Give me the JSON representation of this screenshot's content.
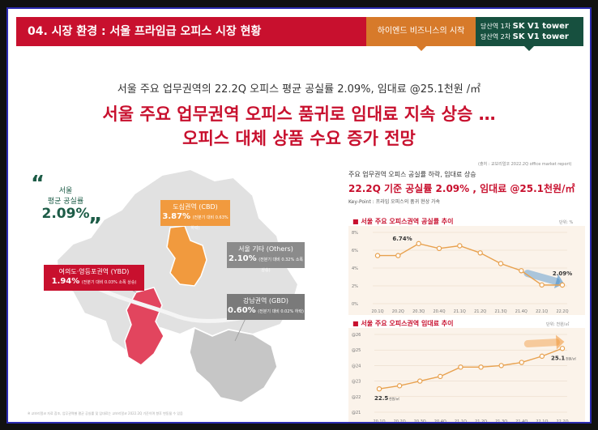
{
  "header": {
    "section_title": "04. 시장 환경 : 서울 프라임급 오피스 시장 현황",
    "tagline": "하이엔드 비즈니스의 시작",
    "brand_line1_prefix": "당산역 1차",
    "brand_line1_name": "SK V1 tower",
    "brand_line2_prefix": "당산역 2차",
    "brand_line2_name": "SK V1 tower"
  },
  "colors": {
    "brand_red": "#c8102e",
    "accent_orange": "#d77a2a",
    "brand_green": "#17503f",
    "frame_border": "#2b2bb0"
  },
  "subtitle": "서울 주요 업무권역의 22.2Q 오피스 평균 공실률 2.09%, 임대료 @25.1천원 /㎡",
  "headline": {
    "line1": "서울 주요 업무권역 오피스 품귀로 임대료 지속 상승 …",
    "line2": "오피스 대체 상품 수요 증가 전망"
  },
  "source": "(출처 : 교보리얼코 2022.2Q office market report)",
  "quote": {
    "label_line1": "서울",
    "label_line2": "평균 공실률",
    "value": "2.09%"
  },
  "map": {
    "cbd": {
      "name": "도심권역 (CBD)",
      "value": "3.87%",
      "note": "(전분기 대비 0.63% 하락)"
    },
    "ybd": {
      "name": "여의도·영등포권역 (YBD)",
      "value": "1.94%",
      "note": "(전분기 대비 0.03% 소폭 상승)"
    },
    "others": {
      "name": "서울 기타 (Others)",
      "value": "2.10%",
      "note": "(전분기 대비 0.32% 소폭 상승)"
    },
    "gbd": {
      "name": "강남권역 (GBD)",
      "value": "0.60%",
      "note": "(전분기 대비 0.02% 하락)"
    }
  },
  "right": {
    "line1": "주요 업무권역 오피스 공실률 하락, 임대료 상승",
    "line2": "22.2Q 기준 공실률 2.09% , 임대료 @25.1천원/㎡",
    "line3": "Key-Point : 프라임 오피스의 품귀 현상 가속"
  },
  "chart_data": [
    {
      "type": "line",
      "title": "서울 주요 오피스권역 공실률 추이",
      "unit": "단위: %",
      "categories": [
        "20.1Q",
        "20.2Q",
        "20.3Q",
        "20.4Q",
        "21.1Q",
        "21.2Q",
        "21.3Q",
        "21.4Q",
        "22.1Q",
        "22.2Q"
      ],
      "values": [
        5.4,
        5.4,
        6.74,
        6.2,
        6.5,
        5.7,
        4.5,
        3.7,
        2.1,
        2.09
      ],
      "ylim": [
        0,
        8
      ],
      "yticks": [
        "0%",
        "2%",
        "4%",
        "6%",
        "8%"
      ],
      "annotations": [
        "6.74%",
        "2.09%"
      ]
    },
    {
      "type": "line",
      "title": "서울 주요 오피스권역 임대료 추이",
      "unit": "단위: 천원/㎡",
      "categories": [
        "20.1Q",
        "20.2Q",
        "20.3Q",
        "20.4Q",
        "21.1Q",
        "21.2Q",
        "21.3Q",
        "21.4Q",
        "22.1Q",
        "22.2Q"
      ],
      "values": [
        22.5,
        22.7,
        23.0,
        23.3,
        23.9,
        23.9,
        24.0,
        24.2,
        24.6,
        25.1
      ],
      "ylim": [
        21,
        26
      ],
      "yticks": [
        "@21",
        "@22",
        "@23",
        "@24",
        "@25",
        "@26"
      ],
      "annotations": [
        "22.5",
        "25.1"
      ],
      "annotation_unit": "천원/㎡"
    }
  ],
  "footnote": "※ 교보리얼코 자료 참조, 업무권역별 평균 공실률 및 임대료는 교보리얼코 2022.2Q 기준이며 향후 변동될 수 있음"
}
